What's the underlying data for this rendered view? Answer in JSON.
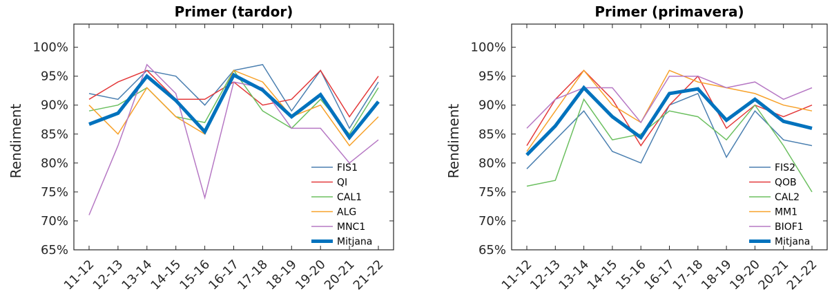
{
  "chart_data": [
    {
      "type": "line",
      "title": "Primer (tardor)",
      "ylabel": "Rendiment",
      "ylim": [
        65,
        104
      ],
      "yticks": [
        "65%",
        "70%",
        "75%",
        "80%",
        "85%",
        "90%",
        "95%",
        "100%"
      ],
      "categories": [
        "11-12",
        "12-13",
        "13-14",
        "14-15",
        "15-16",
        "16-17",
        "17-18",
        "18-19",
        "19-20",
        "20-21",
        "21-22"
      ],
      "legend_position": "bottom-right",
      "series": [
        {
          "name": "FIS1",
          "color": "#4a7fb0",
          "values": [
            92,
            91,
            96,
            95,
            90,
            96,
            97,
            89,
            96,
            86,
            94
          ]
        },
        {
          "name": "QI",
          "color": "#e3393a",
          "values": [
            91,
            94,
            96,
            91,
            91,
            94,
            90,
            91,
            96,
            88,
            95
          ]
        },
        {
          "name": "CAL1",
          "color": "#6bbf5f",
          "values": [
            89,
            90,
            93,
            88,
            87,
            96,
            89,
            86,
            91,
            85,
            93
          ]
        },
        {
          "name": "ALG",
          "color": "#f7a129",
          "values": [
            90,
            85,
            93,
            88,
            85,
            96,
            94,
            88,
            90,
            83,
            88
          ]
        },
        {
          "name": "MNC1",
          "color": "#b678c4",
          "values": [
            71,
            83,
            97,
            92,
            74,
            94,
            93,
            86,
            86,
            80,
            84
          ]
        },
        {
          "name": "Mitjana",
          "color": "#0072bd",
          "values": [
            86.7,
            88.6,
            95.0,
            90.8,
            85.4,
            95.2,
            92.6,
            88.0,
            91.8,
            84.4,
            90.6
          ],
          "bold": true
        }
      ]
    },
    {
      "type": "line",
      "title": "Primer (primavera)",
      "ylabel": "Rendiment",
      "ylim": [
        65,
        104
      ],
      "yticks": [
        "65%",
        "70%",
        "75%",
        "80%",
        "85%",
        "90%",
        "95%",
        "100%"
      ],
      "categories": [
        "11-12",
        "12-13",
        "13-14",
        "14-15",
        "15-16",
        "16-17",
        "17-18",
        "18-19",
        "19-20",
        "20-21",
        "21-22"
      ],
      "legend_position": "bottom-right",
      "series": [
        {
          "name": "FIS2",
          "color": "#4a7fb0",
          "values": [
            79,
            84,
            89,
            82,
            80,
            90,
            92,
            81,
            89,
            84,
            83
          ]
        },
        {
          "name": "QOB",
          "color": "#e3393a",
          "values": [
            83,
            91,
            96,
            91,
            83,
            90,
            95,
            86,
            90,
            88,
            90
          ]
        },
        {
          "name": "CAL2",
          "color": "#6bbf5f",
          "values": [
            76,
            77,
            91,
            84,
            85,
            89,
            88,
            84,
            90,
            83,
            75
          ]
        },
        {
          "name": "MM1",
          "color": "#f7a129",
          "values": [
            82,
            89,
            96,
            90,
            87,
            96,
            94,
            93,
            92,
            90,
            89
          ]
        },
        {
          "name": "BIOF1",
          "color": "#b678c4",
          "values": [
            86,
            91,
            93,
            93,
            87,
            95,
            95,
            93,
            94,
            91,
            93
          ]
        },
        {
          "name": "Mitjana",
          "color": "#0072bd",
          "values": [
            81.4,
            86.4,
            93.0,
            88.0,
            84.4,
            92.0,
            92.8,
            87.4,
            91.0,
            87.2,
            86.0
          ],
          "bold": true
        }
      ]
    }
  ]
}
